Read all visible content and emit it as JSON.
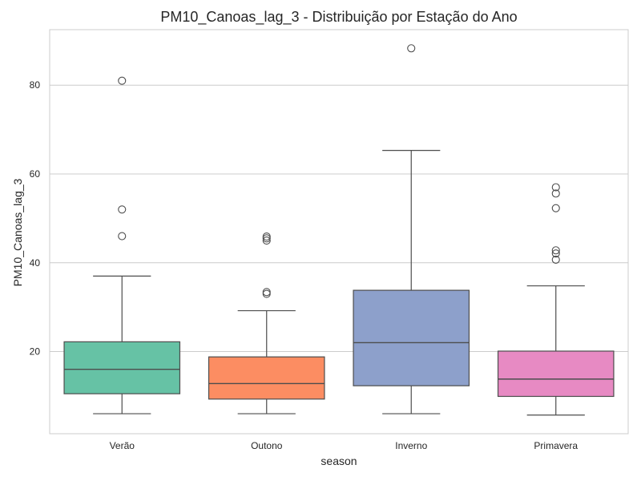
{
  "chart_data": {
    "type": "boxplot",
    "title": "PM10_Canoas_lag_3 - Distribuição por Estação do Ano",
    "xlabel": "season",
    "ylabel": "PM10_Canoas_lag_3",
    "ylim": [
      1.5,
      92.5
    ],
    "yticks": [
      20,
      40,
      60,
      80
    ],
    "grid": true,
    "legend": "none",
    "categories": [
      "Verão",
      "Outono",
      "Inverno",
      "Primavera"
    ],
    "colors": [
      "#66c2a5",
      "#fc8d62",
      "#8da0cb",
      "#e78ac3"
    ],
    "boxes": [
      {
        "category": "Verão",
        "whisker_low": 6,
        "q1": 10.5,
        "median": 16,
        "q3": 22.2,
        "whisker_high": 37,
        "outliers": [
          46,
          52,
          81
        ]
      },
      {
        "category": "Outono",
        "whisker_low": 6,
        "q1": 9.3,
        "median": 12.8,
        "q3": 18.8,
        "whisker_high": 29.2,
        "outliers": [
          33,
          33.4,
          45,
          45.5,
          45.9
        ]
      },
      {
        "category": "Inverno",
        "whisker_low": 6,
        "q1": 12.3,
        "median": 22,
        "q3": 33.8,
        "whisker_high": 65.3,
        "outliers": [
          88.3
        ]
      },
      {
        "category": "Primavera",
        "whisker_low": 5.7,
        "q1": 9.9,
        "median": 13.8,
        "q3": 20.1,
        "whisker_high": 34.8,
        "outliers": [
          40.7,
          42.1,
          42.8,
          52.3,
          55.6,
          57
        ]
      }
    ]
  }
}
